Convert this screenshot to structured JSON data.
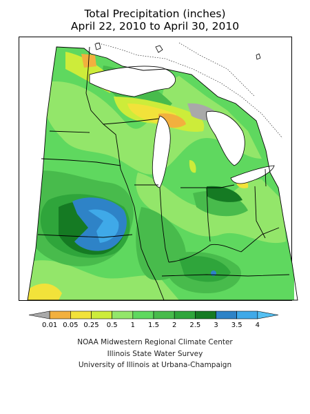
{
  "title": {
    "line1": "Total Precipitation (inches)",
    "line2": "April 22, 2010 to April 30, 2010"
  },
  "colors": {
    "gray": "#a9a9a9",
    "orange": "#f2b03e",
    "yellow": "#f2e23a",
    "yellow_green": "#cdec3a",
    "light_green": "#93e66a",
    "green": "#5fd85f",
    "mid_green": "#48bb4c",
    "green2": "#2fa53b",
    "dark_green": "#157a23",
    "blue": "#2e83c7",
    "light_blue": "#3fa9e8",
    "border": "#000000"
  },
  "legend": {
    "labels": [
      "0.01",
      "0.05",
      "0.25",
      "0.5",
      "1",
      "1.5",
      "2",
      "2.5",
      "3",
      "3.5",
      "4"
    ],
    "colors": [
      "#a9a9a9",
      "#f2b03e",
      "#f2e23a",
      "#cdec3a",
      "#93e66a",
      "#5fd85f",
      "#48bb4c",
      "#2fa53b",
      "#157a23",
      "#2e83c7",
      "#3fa9e8",
      "#55c0f2"
    ]
  },
  "credits": {
    "line1": "NOAA Midwestern Regional Climate Center",
    "line2": "Illinois State Water Survey",
    "line3": "University of Illinois at Urbana-Champaign"
  }
}
